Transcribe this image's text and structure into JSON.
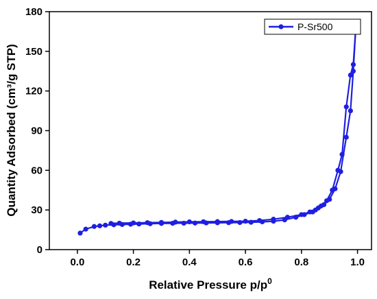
{
  "chart_data": {
    "type": "line",
    "xlabel": "Relative Pressure p/p",
    "xlabel_sup": "0",
    "ylabel": "Quantity Adsorbed (cm³/g STP)",
    "xlim": [
      -0.1,
      1.05
    ],
    "ylim": [
      0,
      180
    ],
    "xticks": [
      0.0,
      0.2,
      0.4,
      0.6,
      0.8,
      1.0
    ],
    "xtick_labels": [
      "0.0",
      "0.2",
      "0.4",
      "0.6",
      "0.8",
      "1.0"
    ],
    "yticks": [
      0,
      30,
      60,
      90,
      120,
      150,
      180
    ],
    "ytick_labels": [
      "0",
      "30",
      "60",
      "90",
      "120",
      "150",
      "180"
    ],
    "grid": false,
    "legend_position": "top-right",
    "color": "#1f1fe0",
    "series": [
      {
        "name": "P-Sr500",
        "adsorption": {
          "x": [
            0.01,
            0.03,
            0.06,
            0.08,
            0.1,
            0.13,
            0.16,
            0.19,
            0.22,
            0.26,
            0.3,
            0.34,
            0.38,
            0.42,
            0.46,
            0.5,
            0.54,
            0.58,
            0.62,
            0.66,
            0.7,
            0.74,
            0.78,
            0.81,
            0.84,
            0.86,
            0.88,
            0.9,
            0.92,
            0.94,
            0.96,
            0.975,
            0.985,
            0.993
          ],
          "y": [
            12.5,
            15.5,
            17.5,
            18.0,
            18.5,
            18.8,
            19.0,
            19.2,
            19.4,
            19.6,
            19.8,
            19.9,
            20.0,
            20.1,
            20.2,
            20.3,
            20.4,
            20.5,
            20.7,
            21.0,
            21.5,
            22.5,
            24.5,
            26.5,
            28.5,
            31.5,
            34.0,
            38.0,
            46.0,
            59.0,
            85.0,
            105.0,
            135.0,
            165.0
          ]
        },
        "desorption": {
          "x": [
            0.993,
            0.985,
            0.975,
            0.96,
            0.945,
            0.93,
            0.91,
            0.89,
            0.87,
            0.85,
            0.83,
            0.8,
            0.75,
            0.7,
            0.65,
            0.6,
            0.55,
            0.5,
            0.45,
            0.4,
            0.35,
            0.3,
            0.25,
            0.2,
            0.15,
            0.12
          ],
          "y": [
            165.0,
            140.0,
            132.0,
            108.0,
            72.0,
            60.0,
            45.0,
            37.0,
            33.0,
            30.0,
            28.5,
            26.5,
            24.5,
            23.0,
            22.0,
            21.5,
            21.3,
            21.2,
            21.1,
            21.0,
            20.8,
            20.6,
            20.4,
            20.2,
            20.0,
            19.8
          ]
        }
      }
    ]
  }
}
